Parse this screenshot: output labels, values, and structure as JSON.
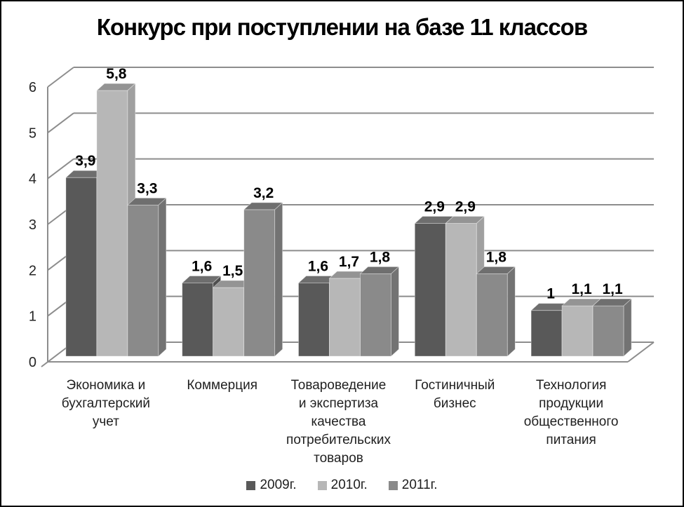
{
  "chart_data": {
    "type": "bar",
    "variant": "3d-clustered",
    "title": "Конкурс при поступлении на базе 11 классов",
    "categories": [
      {
        "label": "Экономика и бухгалтерский учет",
        "lines": [
          "Экономика и",
          "бухгалтерский",
          "учет"
        ]
      },
      {
        "label": "Коммерция",
        "lines": [
          "Коммерция"
        ]
      },
      {
        "label": "Товароведение и экспертиза качества потребительских товаров",
        "lines": [
          "Товароведение",
          "и экспертиза",
          "качества",
          "потребительских",
          "товаров"
        ]
      },
      {
        "label": "Гостиничный бизнес",
        "lines": [
          "Гостиничный",
          "бизнес"
        ]
      },
      {
        "label": "Технология продукции общественного питания",
        "lines": [
          "Технология",
          "продукции",
          "общественного",
          "питания"
        ]
      }
    ],
    "series": [
      {
        "name": "2009г.",
        "values": [
          3.9,
          1.6,
          1.6,
          2.9,
          1
        ],
        "labels": [
          "3,9",
          "1,6",
          "1,6",
          "2,9",
          "1"
        ],
        "color": "#595959",
        "top_color": "#6e6e6e",
        "side_color": "#4f4f4f"
      },
      {
        "name": "2010г.",
        "values": [
          5.8,
          1.5,
          1.7,
          2.9,
          1.1
        ],
        "labels": [
          "5,8",
          "1,5",
          "1,7",
          "2,9",
          "1,1"
        ],
        "color": "#b7b7b7",
        "top_color": "#949494",
        "side_color": "#a0a0a0"
      },
      {
        "name": "2011г.",
        "values": [
          3.3,
          3.2,
          1.8,
          1.8,
          1.1
        ],
        "labels": [
          "3,3",
          "3,2",
          "1,8",
          "1,8",
          "1,1"
        ],
        "color": "#8a8a8a",
        "top_color": "#6f6f6f",
        "side_color": "#737373"
      }
    ],
    "y_axis": {
      "min": 0,
      "max": 6,
      "tick_interval": 1,
      "tick_labels": [
        "0",
        "1",
        "2",
        "3",
        "4",
        "5",
        "6"
      ]
    },
    "legend": {
      "position": "bottom",
      "entries": [
        "2009г.",
        "2010г.",
        "2011г."
      ]
    },
    "grid": true,
    "grid_color": "#8d8d8d"
  }
}
